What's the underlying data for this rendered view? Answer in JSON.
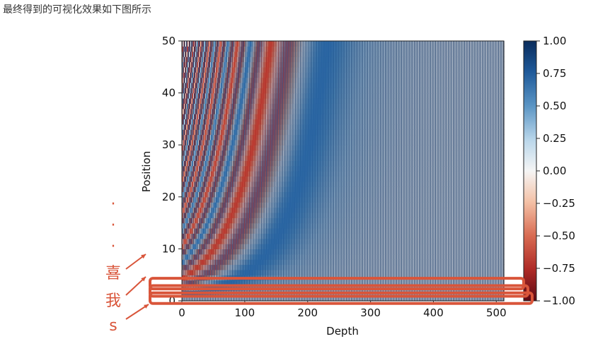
{
  "caption": "最终得到的可视化效果如下图所示",
  "chart_data": {
    "type": "heatmap",
    "title": "",
    "xlabel": "Depth",
    "ylabel": "Position",
    "xlim": [
      0,
      512
    ],
    "ylim": [
      0,
      50
    ],
    "x_ticks": [
      0,
      100,
      200,
      300,
      400,
      500
    ],
    "y_ticks": [
      0,
      10,
      20,
      30,
      40,
      50
    ],
    "colorbar": {
      "range": [
        -1.0,
        1.0
      ],
      "colormap": "RdBu",
      "ticks": [
        "1.00",
        "0.75",
        "0.50",
        "0.25",
        "0.00",
        "−0.25",
        "−0.50",
        "−0.75",
        "−1.00"
      ]
    },
    "annotations": {
      "labels": [
        "喜",
        "我",
        "s"
      ],
      "dots": [
        "·",
        "·",
        "·"
      ],
      "highlighted_positions": [
        0,
        1,
        2
      ],
      "color": "#d9553a"
    }
  }
}
